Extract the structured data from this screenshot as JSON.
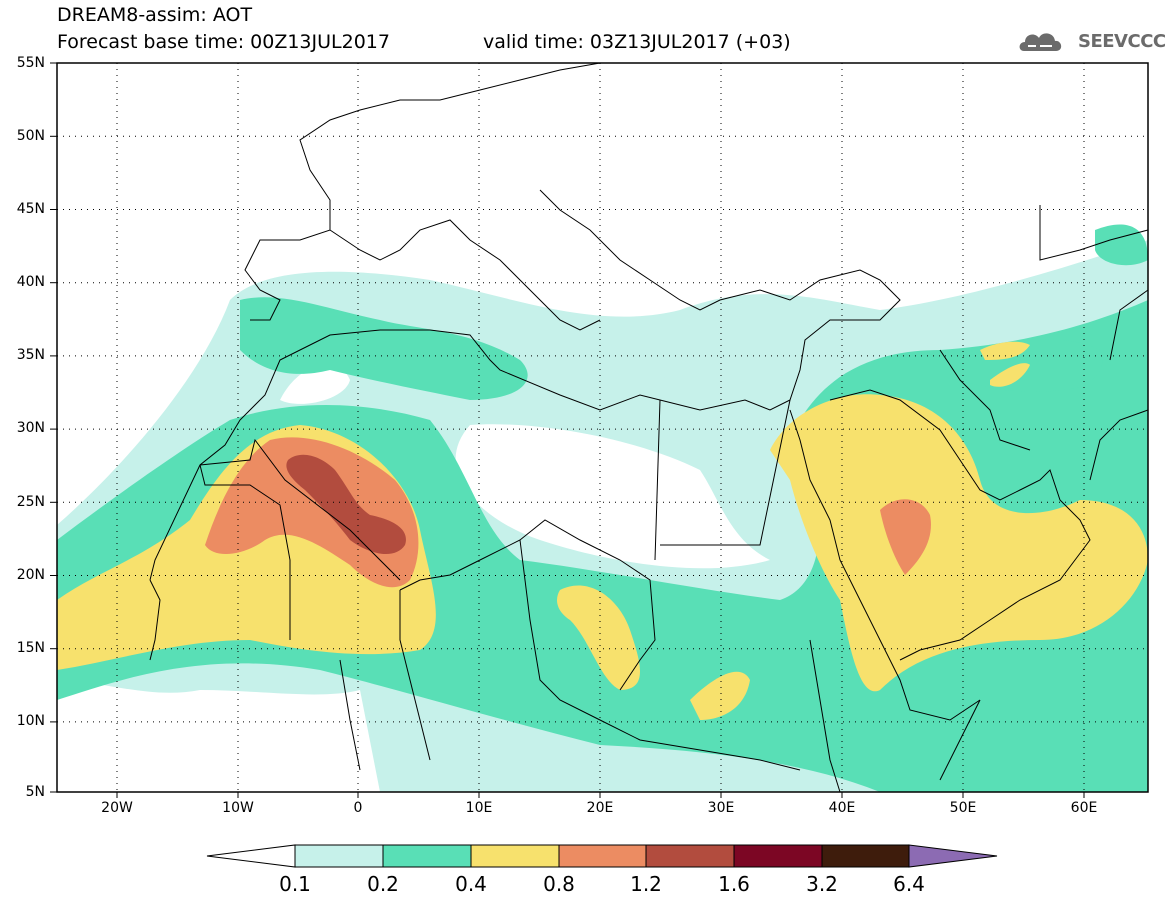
{
  "header": {
    "title": "DREAM8-assim: AOT",
    "base_time": "Forecast base time: 00Z13JUL2017",
    "valid_time": "valid time: 03Z13JUL2017 (+03)",
    "logo_text": "SEEVCCC"
  },
  "axes": {
    "lat_labels": [
      "55N",
      "50N",
      "45N",
      "40N",
      "35N",
      "30N",
      "25N",
      "20N",
      "15N",
      "10N",
      "5N"
    ],
    "lon_labels": [
      "20W",
      "10W",
      "0",
      "10E",
      "20E",
      "30E",
      "40E",
      "50E",
      "60E"
    ]
  },
  "colorbar": {
    "labels": [
      "0.1",
      "0.2",
      "0.4",
      "0.8",
      "1.2",
      "1.6",
      "3.2",
      "6.4"
    ],
    "colors": [
      "#c6f1ea",
      "#59dfb6",
      "#f7e16d",
      "#ec8c62",
      "#b24c3e",
      "#7c0624",
      "#3e1c0c",
      "#8c6bb3"
    ]
  },
  "map": {
    "frame_color": "#000000",
    "border_color": "#000000",
    "grid_style": "dotted"
  }
}
